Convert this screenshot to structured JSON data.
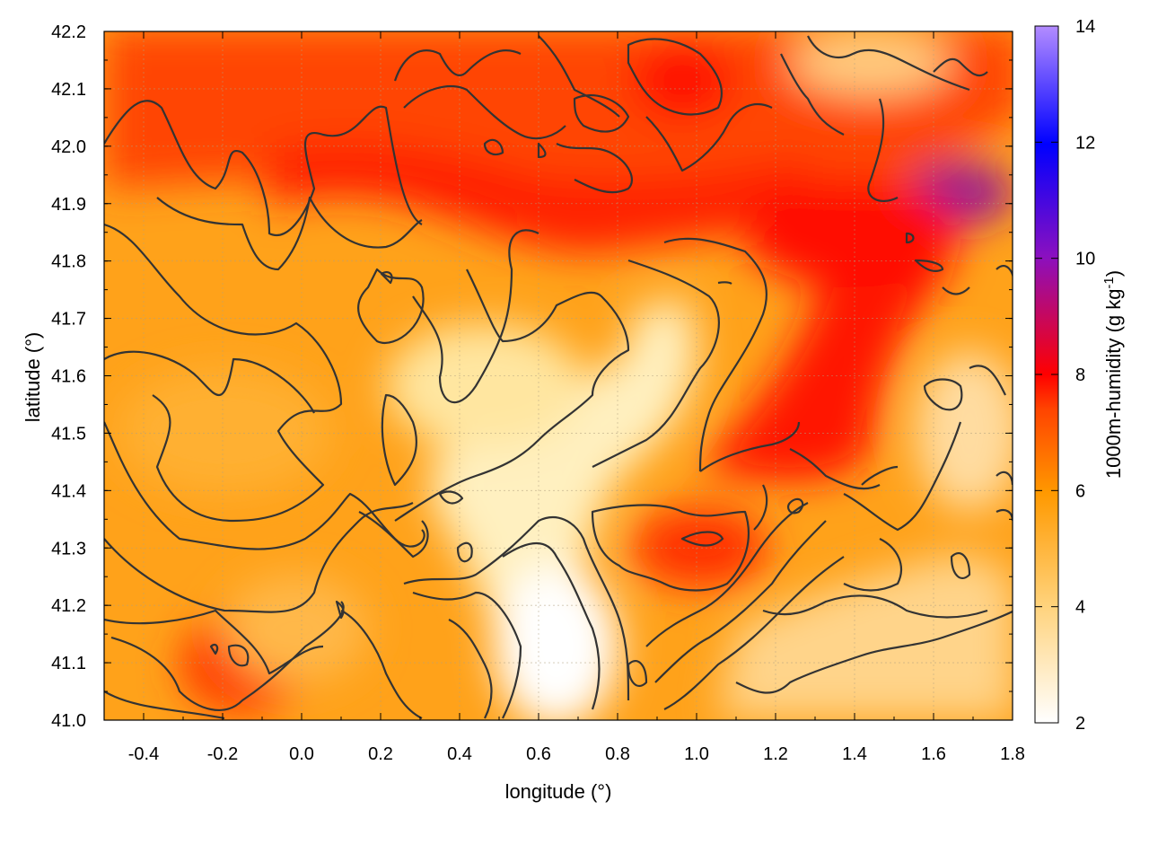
{
  "chart_data": {
    "type": "heatmap",
    "title": "",
    "xlabel": "longitude (°)",
    "ylabel": "latitude (°)",
    "xlim": [
      -0.5,
      1.8
    ],
    "ylim": [
      41.0,
      42.2
    ],
    "x_ticks": [
      "-0.4",
      "-0.2",
      "0.0",
      "0.2",
      "0.4",
      "0.6",
      "0.8",
      "1.0",
      "1.2",
      "1.4",
      "1.6",
      "1.8"
    ],
    "x_tick_values": [
      -0.4,
      -0.2,
      0.0,
      0.2,
      0.4,
      0.6,
      0.8,
      1.0,
      1.2,
      1.4,
      1.6,
      1.8
    ],
    "y_ticks": [
      "41.0",
      "41.1",
      "41.2",
      "41.3",
      "41.4",
      "41.5",
      "41.6",
      "41.7",
      "41.8",
      "41.9",
      "42.0",
      "42.1",
      "42.2"
    ],
    "y_tick_values": [
      41.0,
      41.1,
      41.2,
      41.3,
      41.4,
      41.5,
      41.6,
      41.7,
      41.8,
      41.9,
      42.0,
      42.1,
      42.2
    ],
    "grid": true,
    "colorbar": {
      "label": "1000m-humidity (g kg",
      "label_sup": "-1",
      "label_end": ")",
      "range": [
        2,
        14
      ],
      "ticks": [
        "2",
        "4",
        "6",
        "8",
        "10",
        "12",
        "14"
      ],
      "tick_values": [
        2,
        4,
        6,
        8,
        10,
        12,
        14
      ],
      "colors": [
        "#ffffff",
        "#ffd27a",
        "#ff9900",
        "#ff4400",
        "#ff0000",
        "#8a10c0",
        "#0000ff",
        "#b38cff"
      ]
    },
    "field_samples": [
      {
        "lon": -0.2,
        "lat": 41.1,
        "value": 7.0
      },
      {
        "lon": 0.0,
        "lat": 41.5,
        "value": 5.0
      },
      {
        "lon": 0.2,
        "lat": 41.85,
        "value": 7.5
      },
      {
        "lon": 0.55,
        "lat": 41.5,
        "value": 3.5
      },
      {
        "lon": 0.65,
        "lat": 41.1,
        "value": 2.5
      },
      {
        "lon": 0.95,
        "lat": 42.1,
        "value": 7.5
      },
      {
        "lon": 1.0,
        "lat": 41.3,
        "value": 7.0
      },
      {
        "lon": 1.3,
        "lat": 41.6,
        "value": 7.8
      },
      {
        "lon": 1.65,
        "lat": 41.92,
        "value": 9.5
      },
      {
        "lon": 1.6,
        "lat": 41.4,
        "value": 4.0
      },
      {
        "lon": 1.4,
        "lat": 42.15,
        "value": 4.0
      }
    ]
  }
}
